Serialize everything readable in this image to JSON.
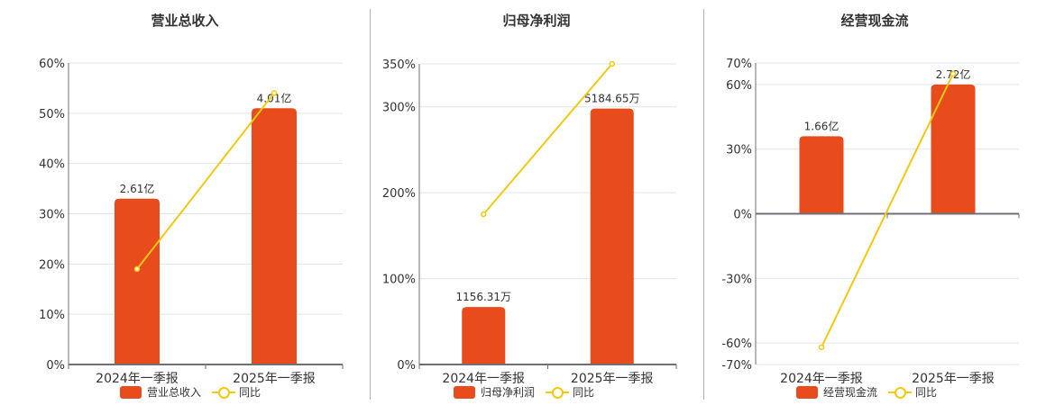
{
  "colors": {
    "bar": "#e84c1c",
    "line": "#f2c811",
    "grid": "#dfe5ee",
    "axis": "#6e7079",
    "text": "#333333"
  },
  "legend": {
    "line_label": "同比"
  },
  "chart_data": [
    {
      "type": "bar+line",
      "title": "营业总收入",
      "categories": [
        "2024年一季报",
        "2025年一季报"
      ],
      "series": [
        {
          "name": "营业总收入",
          "type": "bar",
          "labels": [
            "2.61亿",
            "4.01亿"
          ],
          "values": [
            2.61,
            4.01
          ],
          "bar_pct_scale": [
            33,
            51
          ]
        },
        {
          "name": "同比",
          "type": "line",
          "values": [
            19,
            54
          ]
        }
      ],
      "yaxis": {
        "ticks": [
          "0%",
          "10%",
          "20%",
          "30%",
          "40%",
          "50%",
          "60%"
        ],
        "tick_values": [
          0,
          10,
          20,
          30,
          40,
          50,
          60
        ],
        "ylim": [
          0,
          60
        ]
      },
      "legend_position": "bottom"
    },
    {
      "type": "bar+line",
      "title": "归母净利润",
      "categories": [
        "2024年一季报",
        "2025年一季报"
      ],
      "series": [
        {
          "name": "归母净利润",
          "type": "bar",
          "labels": [
            "1156.31万",
            "5184.65万"
          ],
          "values": [
            1156.31,
            5184.65
          ],
          "bar_pct_scale": [
            67,
            298
          ]
        },
        {
          "name": "同比",
          "type": "line",
          "values": [
            175,
            350
          ]
        }
      ],
      "yaxis": {
        "ticks": [
          "0%",
          "100%",
          "200%",
          "300%",
          "350%"
        ],
        "tick_values": [
          0,
          100,
          200,
          300,
          350
        ],
        "ylim": [
          0,
          350
        ]
      },
      "legend_position": "bottom"
    },
    {
      "type": "bar+line",
      "title": "经营现金流",
      "categories": [
        "2024年一季报",
        "2025年一季报"
      ],
      "series": [
        {
          "name": "经营现金流",
          "type": "bar",
          "labels": [
            "1.66亿",
            "2.72亿"
          ],
          "values": [
            1.66,
            2.72
          ],
          "bar_pct_scale": [
            36,
            60
          ]
        },
        {
          "name": "同比",
          "type": "line",
          "values": [
            -62,
            65
          ]
        }
      ],
      "yaxis": {
        "ticks": [
          "-70%",
          "-60%",
          "-30%",
          "0%",
          "30%",
          "60%",
          "70%"
        ],
        "tick_values": [
          -70,
          -60,
          -30,
          0,
          30,
          60,
          70
        ],
        "ylim": [
          -70,
          70
        ]
      },
      "legend_position": "bottom"
    }
  ]
}
